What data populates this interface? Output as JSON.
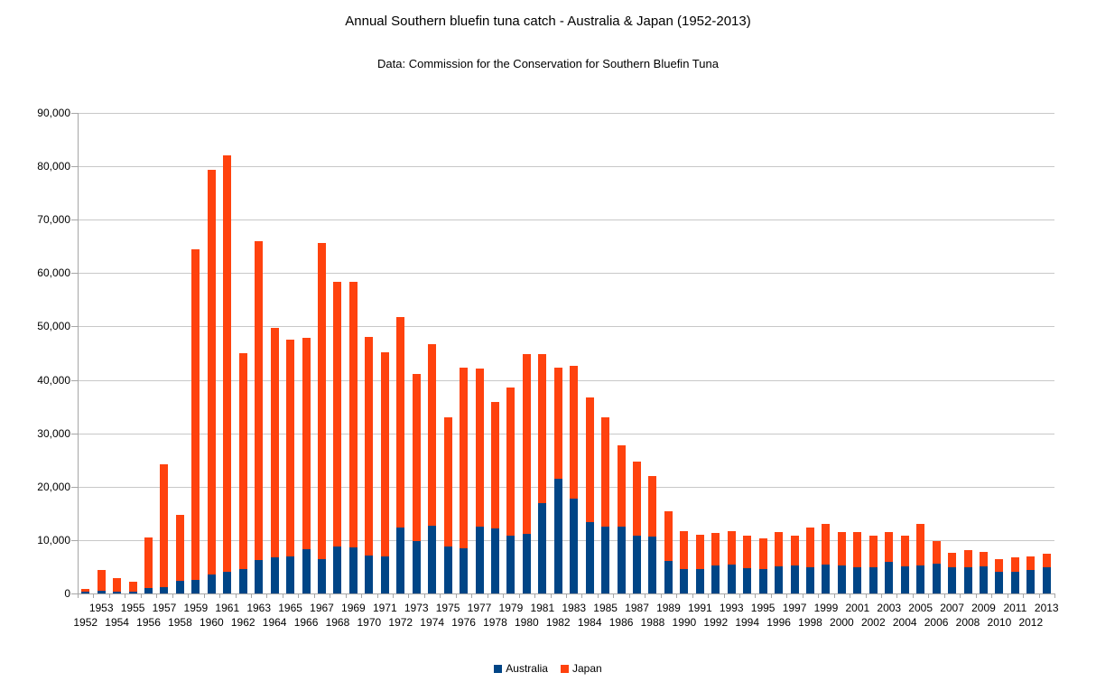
{
  "title": "Annual Southern bluefin tuna catch - Australia & Japan (1952-2013)",
  "subtitle": "Data: Commission for the Conservation for Southern Bluefin Tuna",
  "colors": {
    "australia": "#004586",
    "japan": "#FF420E",
    "gridline": "#c8c8c8",
    "axis": "#a6a6a6"
  },
  "chart_data": {
    "type": "bar",
    "stacked": true,
    "title": "Annual Southern bluefin tuna catch - Australia & Japan (1952-2013)",
    "subtitle": "Data: Commission for the Conservation for Southern Bluefin Tuna",
    "xlabel": "",
    "ylabel": "",
    "ylim": [
      0,
      90000
    ],
    "ytick_step": 10000,
    "grid": true,
    "legend_position": "bottom",
    "categories": [
      1952,
      1953,
      1954,
      1955,
      1956,
      1957,
      1958,
      1959,
      1960,
      1961,
      1962,
      1963,
      1964,
      1965,
      1966,
      1967,
      1968,
      1969,
      1970,
      1971,
      1972,
      1973,
      1974,
      1975,
      1976,
      1977,
      1978,
      1979,
      1980,
      1981,
      1982,
      1983,
      1984,
      1985,
      1986,
      1987,
      1988,
      1989,
      1990,
      1991,
      1992,
      1993,
      1994,
      1995,
      1996,
      1997,
      1998,
      1999,
      2000,
      2001,
      2002,
      2003,
      2004,
      2005,
      2006,
      2007,
      2008,
      2009,
      2010,
      2011,
      2012,
      2013
    ],
    "series": [
      {
        "name": "Australia",
        "color": "#004586",
        "values": [
          264,
          509,
          424,
          322,
          964,
          1264,
          2322,
          2486,
          3545,
          4067,
          4595,
          6199,
          6832,
          6876,
          8242,
          6357,
          8737,
          8679,
          7097,
          6969,
          12397,
          9890,
          12672,
          8833,
          8383,
          12569,
          12190,
          10783,
          11195,
          16843,
          21501,
          17695,
          13411,
          12589,
          12531,
          10821,
          10591,
          6118,
          4586,
          4489,
          5248,
          5373,
          4700,
          4508,
          5128,
          5316,
          4897,
          5439,
          5247,
          4846,
          4862,
          5872,
          5070,
          5244,
          5622,
          4849,
          4968,
          5023,
          4130,
          4118,
          4427,
          4855
        ]
      },
      {
        "name": "Japan",
        "color": "#FF420E",
        "values": [
          565,
          3890,
          2447,
          1964,
          9603,
          22908,
          12462,
          61892,
          75826,
          77927,
          40397,
          59724,
          42838,
          40689,
          39644,
          59281,
          49657,
          49769,
          40929,
          38149,
          39458,
          31225,
          34005,
          24134,
          33986,
          29600,
          23632,
          27828,
          33653,
          27981,
          20789,
          24881,
          23328,
          20396,
          15182,
          13964,
          11422,
          9222,
          7056,
          6477,
          6121,
          6318,
          6063,
          5867,
          6300,
          5588,
          7500,
          7554,
          6188,
          6674,
          5935,
          5633,
          5816,
          7823,
          4123,
          2767,
          3093,
          2817,
          2281,
          2583,
          2567,
          2587
        ]
      }
    ]
  }
}
